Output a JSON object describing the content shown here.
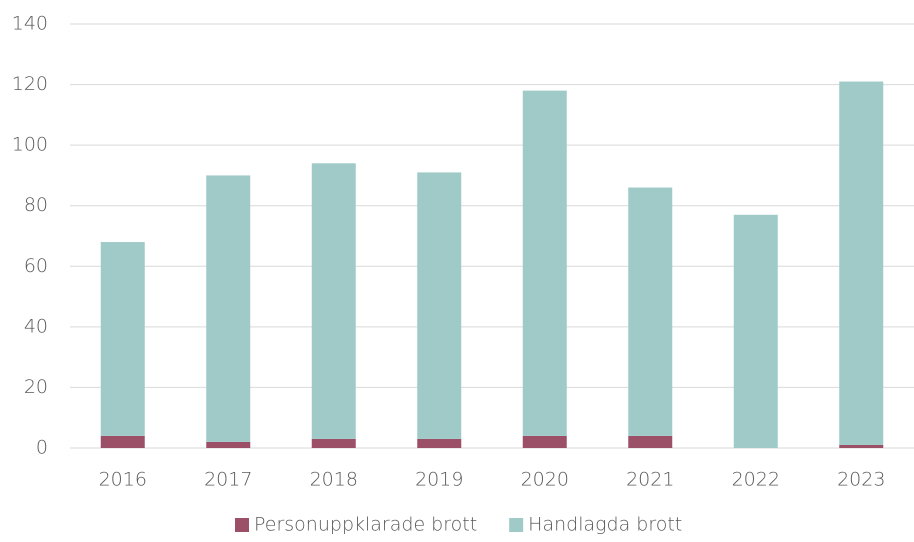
{
  "chart_data": {
    "type": "stacked_bar",
    "categories": [
      "2016",
      "2017",
      "2018",
      "2019",
      "2020",
      "2021",
      "2022",
      "2023"
    ],
    "series": [
      {
        "name": "Personuppklarade brott",
        "color": "#9b5068",
        "values": [
          4,
          2,
          3,
          3,
          4,
          4,
          0,
          1
        ]
      },
      {
        "name": "Handlagda brott",
        "color": "#9fcac8",
        "values": [
          64,
          88,
          91,
          88,
          114,
          82,
          77,
          120
        ]
      }
    ],
    "ylim": [
      0,
      140
    ],
    "yticks": [
      0,
      20,
      40,
      60,
      80,
      100,
      120,
      140
    ],
    "grid": true,
    "legend": "bottom"
  }
}
